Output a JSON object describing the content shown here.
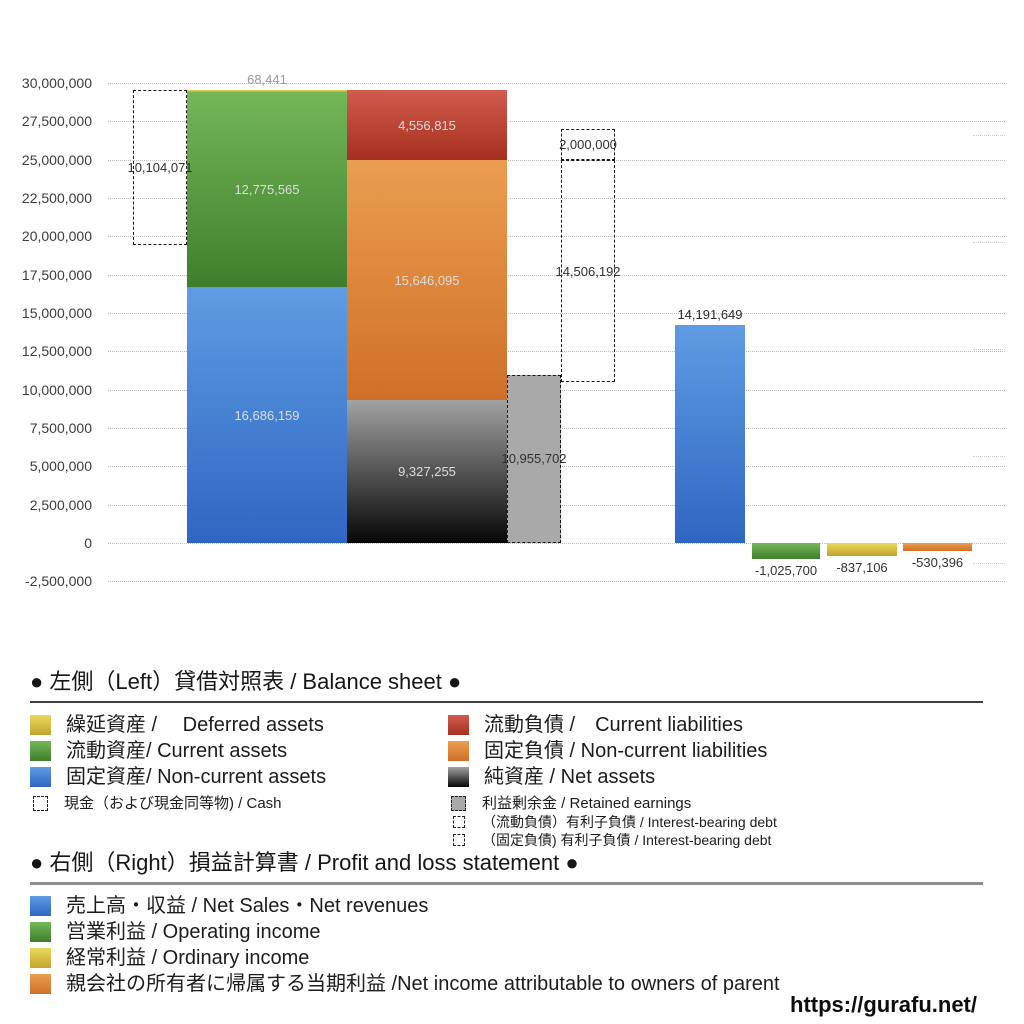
{
  "colors": {
    "blue": "#4a86d0",
    "green": "#59a23d",
    "yellow": "#ddc33c",
    "orange": "#e08b3c",
    "red": "#bf4434",
    "gray": "#a9a9a9",
    "net_assets_gradient_top": "#9a9a9a",
    "net_assets_gradient_bottom": "#000000",
    "gridline": "#bdbdbd"
  },
  "chart_data": {
    "type": "bar",
    "title": "",
    "xlabel": "",
    "ylabel": "",
    "ylim": [
      -2500000,
      30000000
    ],
    "ytick_step": 2500000,
    "grid": "dotted horizontal",
    "legend_position": "below",
    "yticks": [
      {
        "v": 30000000,
        "label": "30,000,000"
      },
      {
        "v": 27500000,
        "label": "27,500,000"
      },
      {
        "v": 25000000,
        "label": "25,000,000"
      },
      {
        "v": 22500000,
        "label": "22,500,000"
      },
      {
        "v": 20000000,
        "label": "20,000,000"
      },
      {
        "v": 17500000,
        "label": "17,500,000"
      },
      {
        "v": 15000000,
        "label": "15,000,000"
      },
      {
        "v": 12500000,
        "label": "12,500,000"
      },
      {
        "v": 10000000,
        "label": "10,000,000"
      },
      {
        "v": 7500000,
        "label": "7,500,000"
      },
      {
        "v": 5000000,
        "label": "5,000,000"
      },
      {
        "v": 2500000,
        "label": "2,500,000"
      },
      {
        "v": 0,
        "label": "0"
      },
      {
        "v": -2500000,
        "label": "-2,500,000"
      }
    ],
    "balance_sheet": {
      "assets": [
        {
          "name": "固定資産 / Non-current assets",
          "value": 16686159,
          "label": "16,686,159",
          "bottom": 0,
          "top": 16686159,
          "color": "#4a86d0"
        },
        {
          "name": "流動資産 / Current assets",
          "value": 12775565,
          "label": "12,775,565",
          "bottom": 16686159,
          "top": 29461724,
          "color": "#59a23d"
        },
        {
          "name": "繰延資産 / Deferred assets",
          "value": 68441,
          "label": "68,441",
          "bottom": 29461724,
          "top": 29530165,
          "color": "#ddc33c"
        }
      ],
      "liabilities_net_assets": [
        {
          "name": "純資産 / Net assets",
          "value": 9327255,
          "label": "9,327,255",
          "bottom": 0,
          "top": 9327255,
          "color": "black-gradient"
        },
        {
          "name": "固定負債 / Non-current liabilities",
          "value": 15646095,
          "label": "15,646,095",
          "bottom": 9327255,
          "top": 24973350,
          "color": "#e08b3c"
        },
        {
          "name": "流動負債 / Current liabilities",
          "value": 4556815,
          "label": "4,556,815",
          "bottom": 24973350,
          "top": 29530165,
          "color": "#bf4434"
        }
      ],
      "retained_earnings": {
        "name": "利益剰余金 / Retained earnings",
        "value": 10955702,
        "label": "10,955,702",
        "bottom": 0,
        "top": 10955702,
        "color": "#a9a9a9"
      },
      "cash": {
        "name": "現金（および現金同等物) / Cash",
        "value": 10104071,
        "label": "10,104,071",
        "bottom": 19426094,
        "top": 29530165,
        "color": "dotted-outline"
      },
      "interest_bearing_debt_current": {
        "name": "（流動負債）有利子負債 / Interest-bearing debt",
        "value": 2000000,
        "label": "2,000,000",
        "bottom": 24973350,
        "top": 26973350,
        "color": "dotted-outline"
      },
      "interest_bearing_debt_non_current": {
        "name": "（固定負債) 有利子負債 / Interest-bearing debt",
        "value": 14506192,
        "label": "14,506,192",
        "bottom": 10467158,
        "top": 24973350,
        "color": "dotted-outline"
      }
    },
    "profit_loss": [
      {
        "name": "売上高・収益 / Net Sales・Net revenues",
        "value": 14191649,
        "label": "14,191,649",
        "bottom": 0,
        "top": 14191649,
        "color": "#4a86d0"
      },
      {
        "name": "営業利益 / Operating income",
        "value": -1025700,
        "label": "-1,025,700",
        "bottom": -1025700,
        "top": 0,
        "color": "#59a23d"
      },
      {
        "name": "経常利益 / Ordinary income",
        "value": -837106,
        "label": "-837,106",
        "bottom": -837106,
        "top": 0,
        "color": "#ddc33c"
      },
      {
        "name": "親会社の所有者に帰属する当期利益 / Net income attributable to owners of parent",
        "value": -530396,
        "label": "-530,396",
        "bottom": -530396,
        "top": 0,
        "color": "#e08b3c"
      }
    ]
  },
  "legend_bs": {
    "header": "● 左側（Left）貸借対照表 / Balance sheet ●",
    "left_items": [
      {
        "swatch": "yellow",
        "label": "繰延資産 /　 Deferred assets"
      },
      {
        "swatch": "green",
        "label": "流動資産/ Current assets"
      },
      {
        "swatch": "blue",
        "label": "固定資産/ Non-current assets"
      },
      {
        "swatch": "dotted-white",
        "label": "現金（および現金同等物) / Cash"
      }
    ],
    "right_items": [
      {
        "swatch": "red",
        "label": "流動負債 /　Current liabilities"
      },
      {
        "swatch": "orange",
        "label": "固定負債 / Non-current liabilities"
      },
      {
        "swatch": "black-gradient",
        "label": "純資産 / Net assets"
      },
      {
        "swatch": "dotted-gray",
        "label": "利益剰余金 / Retained earnings"
      },
      {
        "swatch": "dotted-white",
        "label": "（流動負債）有利子負債 / Interest-bearing debt"
      },
      {
        "swatch": "dotted-white",
        "label": "（固定負債) 有利子負債 / Interest-bearing debt"
      }
    ]
  },
  "legend_pl": {
    "header": "● 右側（Right）損益計算書 / Profit and loss statement ●",
    "items": [
      {
        "swatch": "blue",
        "label": "売上高・収益 / Net Sales・Net revenues"
      },
      {
        "swatch": "green",
        "label": "営業利益 / Operating income"
      },
      {
        "swatch": "yellow",
        "label": "経常利益 / Ordinary income"
      },
      {
        "swatch": "orange",
        "label": "親会社の所有者に帰属する当期利益 /Net income attributable to owners of parent"
      }
    ]
  },
  "footer": {
    "url": "https://gurafu.net/"
  }
}
